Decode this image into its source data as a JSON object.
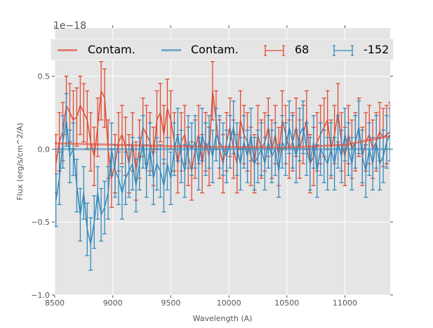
{
  "chart_data": {
    "type": "line",
    "title": "",
    "xlabel": "Wavelength (A)",
    "ylabel": "Flux (erg/s/cm^2/A)",
    "y_offset_label": "1e−18",
    "xlim": [
      8500,
      11390
    ],
    "ylim": [
      -1.0,
      0.83
    ],
    "xticks": [
      8500,
      9000,
      9500,
      10000,
      10500,
      11000
    ],
    "yticks": [
      -1.0,
      -0.5,
      0.0,
      0.5
    ],
    "xtick_labels": [
      "8500",
      "9000",
      "9500",
      "10000",
      "10500",
      "11000"
    ],
    "ytick_labels": [
      "−1.0",
      "−0.5",
      "0.0",
      "0.5"
    ],
    "grid": true,
    "legend_position": "top",
    "x_start": 8510,
    "x_step": 30,
    "series": [
      {
        "name": "Contam.",
        "kind": "contam",
        "color": "#E24A33",
        "x": [
          8500,
          9000,
          9500,
          10000,
          10500,
          11000,
          11390
        ],
        "y": [
          0.04,
          0.03,
          0.02,
          0.015,
          0.01,
          0.03,
          0.09
        ]
      },
      {
        "name": "Contam.",
        "kind": "contam",
        "color": "#348ABD",
        "x": [
          8500,
          9500,
          10500,
          11390
        ],
        "y": [
          0.0,
          0.0,
          0.0,
          0.0
        ]
      },
      {
        "name": "68",
        "kind": "errorbar",
        "color": "#E24A33",
        "yerr": 0.2,
        "y": [
          -0.1,
          0.05,
          0.12,
          0.3,
          0.25,
          0.2,
          0.22,
          0.3,
          0.25,
          0.2,
          0.05,
          -0.05,
          0.15,
          0.4,
          0.35,
          0.0,
          -0.2,
          -0.1,
          0.05,
          0.1,
          0.02,
          -0.1,
          0.05,
          -0.15,
          0.0,
          0.15,
          0.1,
          0.05,
          -0.05,
          0.2,
          0.25,
          0.1,
          0.28,
          0.2,
          0.05,
          -0.1,
          0.05,
          0.1,
          -0.05,
          -0.15,
          0.0,
          0.1,
          -0.1,
          0.05,
          -0.05,
          0.4,
          0.2,
          0.0,
          -0.1,
          0.05,
          0.15,
          0.0,
          -0.1,
          0.2,
          0.1,
          0.05,
          -0.05,
          -0.1,
          0.1,
          0.0,
          0.05,
          0.15,
          0.0,
          0.1,
          -0.05,
          0.2,
          0.1,
          0.0,
          0.05,
          0.15,
          0.0,
          0.1,
          0.2,
          -0.1,
          -0.05,
          0.05,
          0.1,
          0.15,
          0.2,
          0.0,
          0.1,
          0.25,
          0.05,
          -0.05,
          0.1,
          0.0,
          0.05,
          0.15,
          -0.05,
          0.05,
          0.1,
          0.0,
          0.05,
          0.12,
          0.08,
          0.1,
          0.12
        ]
      },
      {
        "name": "-152",
        "kind": "errorbar",
        "color": "#348ABD",
        "yerr": 0.18,
        "y": [
          -0.35,
          -0.2,
          0.05,
          0.2,
          -0.05,
          0.0,
          -0.25,
          -0.45,
          -0.3,
          -0.55,
          -0.65,
          -0.5,
          -0.3,
          -0.45,
          -0.4,
          -0.3,
          0.0,
          -0.15,
          -0.2,
          -0.3,
          -0.2,
          -0.15,
          -0.1,
          -0.25,
          -0.1,
          0.05,
          -0.15,
          0.0,
          -0.2,
          -0.1,
          -0.15,
          -0.25,
          -0.1,
          -0.2,
          0.0,
          0.1,
          -0.05,
          -0.15,
          0.05,
          0.0,
          0.05,
          -0.1,
          0.1,
          0.0,
          0.05,
          -0.05,
          0.1,
          0.05,
          0.0,
          -0.05,
          0.05,
          0.15,
          0.0,
          -0.1,
          0.05,
          -0.05,
          0.1,
          -0.1,
          -0.05,
          0.0,
          -0.1,
          0.05,
          -0.05,
          0.0,
          -0.15,
          0.05,
          0.0,
          0.15,
          0.05,
          -0.05,
          0.1,
          0.15,
          0.0,
          -0.1,
          0.05,
          -0.15,
          0.0,
          -0.05,
          -0.1,
          0.0,
          -0.1,
          0.05,
          -0.05,
          0.1,
          0.0,
          -0.1,
          0.05,
          0.15,
          -0.05,
          -0.15,
          0.0,
          -0.1,
          0.05,
          -0.1,
          -0.05,
          0.05,
          0.1
        ]
      }
    ]
  }
}
